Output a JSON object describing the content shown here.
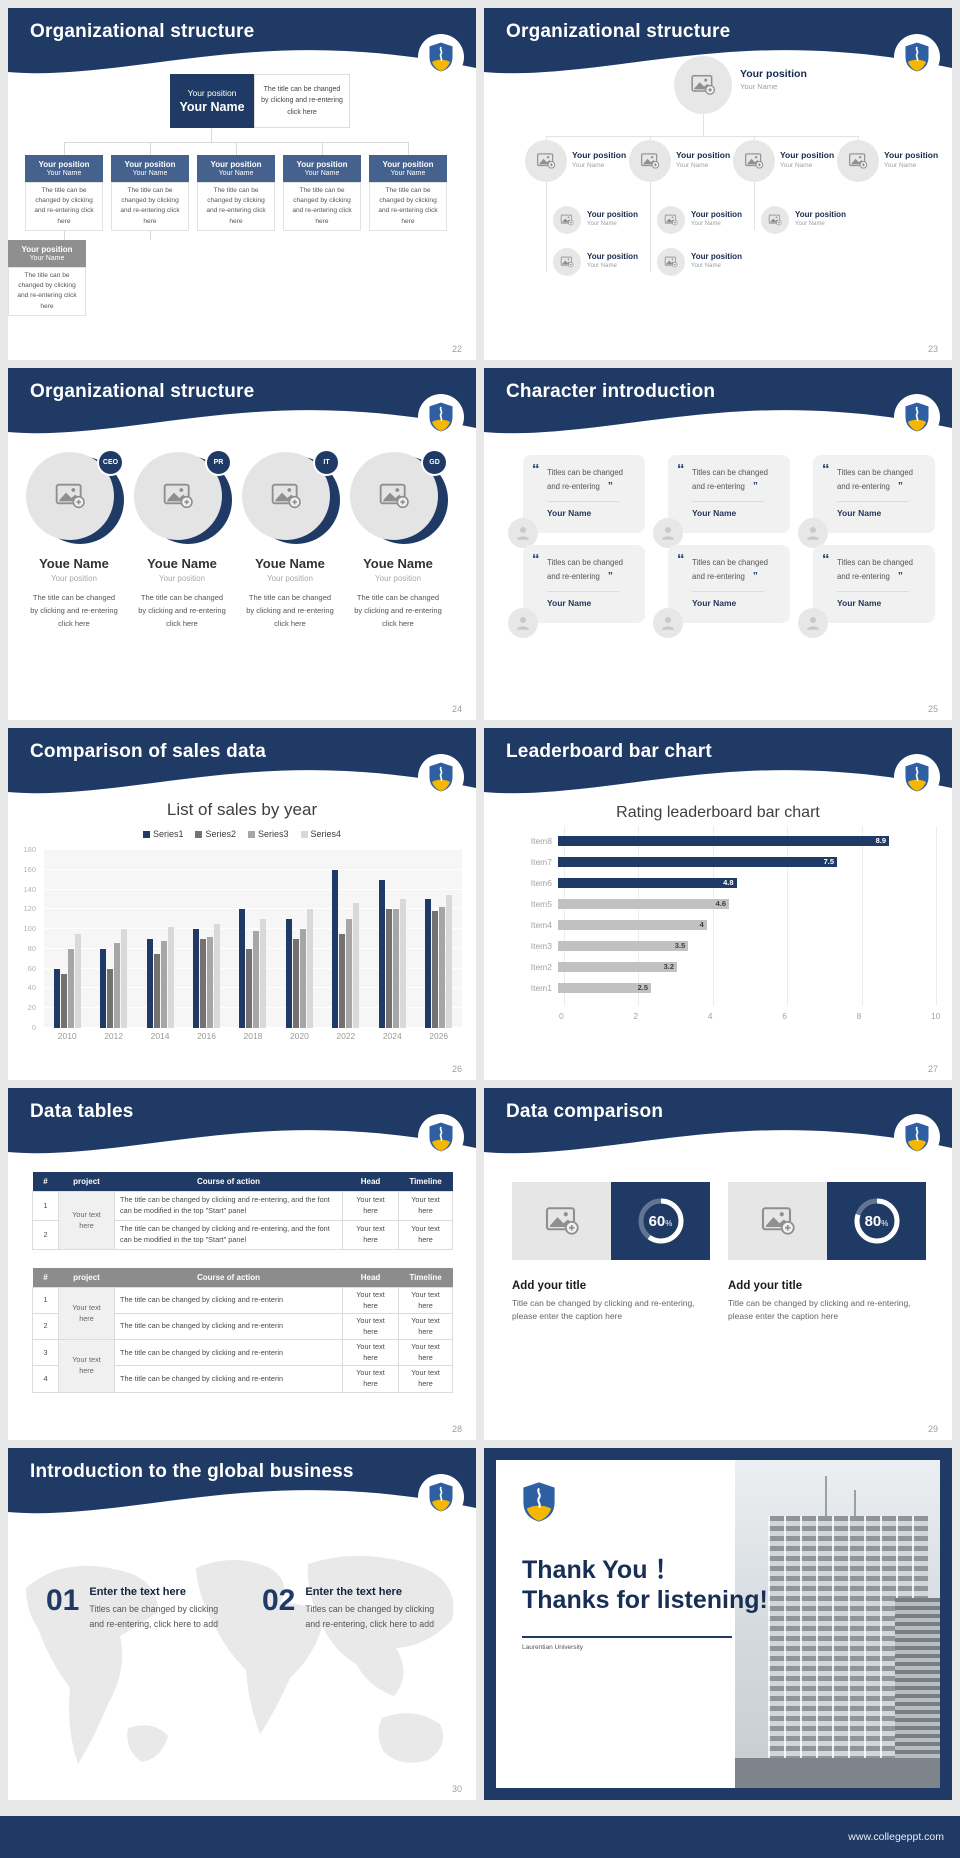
{
  "footer": {
    "url": "www.collegeppt.com"
  },
  "colors": {
    "navy": "#1f3a64",
    "slate_box": "#45618e",
    "gray_box": "#8f8f8f",
    "gold": "#f5b700",
    "shield_blue": "#2e5fa3",
    "leaderboard_gray": "#c1c1c1"
  },
  "slides": {
    "org_boxes": {
      "title": "Organizational structure",
      "page": "22",
      "root": {
        "position": "Your position",
        "name": "Your Name"
      },
      "root_note": "The title can be changed by clicking and re-entering click here",
      "caption": "The title can be changed by clicking and re-entering click here",
      "level2": [
        {
          "position": "Your position",
          "name": "Your Name"
        },
        {
          "position": "Your position",
          "name": "Your Name"
        },
        {
          "position": "Your position",
          "name": "Your Name"
        },
        {
          "position": "Your position",
          "name": "Your Name"
        },
        {
          "position": "Your position",
          "name": "Your Name"
        }
      ],
      "level3": [
        {
          "position": "Your position",
          "name": "Your Name"
        },
        {
          "position": "Your position",
          "name": "Your Name"
        }
      ]
    },
    "org_photos": {
      "title": "Organizational structure",
      "page": "23",
      "root": {
        "position": "Your position",
        "name": "Your Name"
      },
      "level2": [
        {
          "position": "Your position",
          "name": "Your Name"
        },
        {
          "position": "Your position",
          "name": "Your Name"
        },
        {
          "position": "Your position",
          "name": "Your Name"
        },
        {
          "position": "Your position",
          "name": "Your Name"
        }
      ],
      "level3": [
        {
          "position": "Your position",
          "name": "Your Name"
        },
        {
          "position": "Your position",
          "name": "Your Name"
        },
        {
          "position": "Your position",
          "name": "Your Name"
        }
      ],
      "level4": [
        {
          "position": "Your position",
          "name": "Your Name"
        },
        {
          "position": "Your position",
          "name": "Your Name"
        }
      ]
    },
    "org_roles": {
      "title": "Organizational structure",
      "page": "24",
      "members": [
        {
          "badge": "CEO",
          "name": "Youe Name",
          "position": "Your position",
          "caption": "The title can be changed by clicking and re-entering click here"
        },
        {
          "badge": "PR",
          "name": "Youe Name",
          "position": "Your position",
          "caption": "The title can be changed by clicking and re-entering click here"
        },
        {
          "badge": "IT",
          "name": "Youe Name",
          "position": "Your position",
          "caption": "The title can be changed by clicking and re-entering click here"
        },
        {
          "badge": "GD",
          "name": "Youe Name",
          "position": "Your position",
          "caption": "The title can be changed by clicking and re-entering click here"
        }
      ]
    },
    "characters": {
      "title": "Character introduction",
      "page": "25",
      "open_quote": "“",
      "close_quote": "”",
      "cards": [
        {
          "quote": "Titles can be changed and re-entering",
          "name": "Your Name"
        },
        {
          "quote": "Titles can be changed and re-entering",
          "name": "Your Name"
        },
        {
          "quote": "Titles can be changed and re-entering",
          "name": "Your Name"
        },
        {
          "quote": "Titles can be changed and re-entering",
          "name": "Your Name"
        },
        {
          "quote": "Titles can be changed and re-entering",
          "name": "Your Name"
        },
        {
          "quote": "Titles can be changed and re-entering",
          "name": "Your Name"
        }
      ]
    },
    "sales": {
      "title": "Comparison of sales data",
      "page": "26"
    },
    "leaderboard": {
      "title": "Leaderboard bar chart",
      "page": "27"
    },
    "tables": {
      "title": "Data tables",
      "page": "28",
      "headers": [
        "#",
        "project",
        "Course of action",
        "Head",
        "Timeline"
      ],
      "project_text": "Your text here",
      "cell_text": "Your text here",
      "t1_rows": [
        "1",
        "2"
      ],
      "t1_text": "The title can be changed by clicking and re-entering, and the font can be modified in the top \"Start\" panel",
      "t2_rows": [
        "1",
        "2",
        "3",
        "4"
      ],
      "t2_text": "The title can be changed by clicking and re-enterin"
    },
    "comparison": {
      "title": "Data comparison",
      "page": "29",
      "cards": [
        {
          "percent": 60,
          "percent_label": "60",
          "unit": "%",
          "heading": "Add your title",
          "caption": "Title can be changed by clicking and re-entering, please enter the caption here"
        },
        {
          "percent": 80,
          "percent_label": "80",
          "unit": "%",
          "heading": "Add your title",
          "caption": "Title can be changed by clicking and re-entering, please enter the caption here"
        }
      ]
    },
    "global": {
      "title": "Introduction to the global business",
      "page": "30",
      "items": [
        {
          "number": "01",
          "heading": "Enter the text here",
          "body": "Titles can be changed by clicking and re-entering, click here to add"
        },
        {
          "number": "02",
          "heading": "Enter the text here",
          "body": "Titles can be changed by clicking and re-entering, click here to add"
        }
      ]
    },
    "thanks": {
      "title_line1": "Thank You ！",
      "title_line2": "Thanks for listening!",
      "subtitle": "Laurentian University"
    }
  },
  "chart_data": [
    {
      "type": "bar",
      "title": "List of sales by year",
      "xlabel": "",
      "ylabel": "",
      "categories": [
        "2010",
        "2012",
        "2014",
        "2016",
        "2018",
        "2020",
        "2022",
        "2024",
        "2026"
      ],
      "series": [
        {
          "name": "Series1",
          "color": "#1f3a64",
          "values": [
            60,
            80,
            90,
            100,
            120,
            110,
            160,
            150,
            130
          ]
        },
        {
          "name": "Series2",
          "color": "#767171",
          "values": [
            55,
            60,
            75,
            90,
            80,
            90,
            95,
            120,
            118
          ]
        },
        {
          "name": "Series3",
          "color": "#a6a6a6",
          "values": [
            80,
            86,
            88,
            92,
            98,
            100,
            110,
            120,
            122
          ]
        },
        {
          "name": "Series4",
          "color": "#d9d9d9",
          "values": [
            95,
            100,
            102,
            105,
            110,
            120,
            126,
            130,
            135
          ]
        }
      ],
      "ylim": [
        0,
        180
      ],
      "yticks": [
        0,
        20,
        40,
        60,
        80,
        100,
        120,
        140,
        160,
        180
      ],
      "grid": true,
      "legend_position": "top"
    },
    {
      "type": "bar",
      "orientation": "horizontal",
      "title": "Rating leaderboard bar chart",
      "categories": [
        "Item8",
        "Item7",
        "Item6",
        "Item5",
        "Item4",
        "Item3",
        "Item2",
        "Item1"
      ],
      "values": [
        8.9,
        7.5,
        4.8,
        4.6,
        4,
        3.5,
        3.2,
        2.5
      ],
      "value_labels": [
        "8.9",
        "7.5",
        "4.8",
        "4.6",
        "4",
        "3.5",
        "3.2",
        "2.5"
      ],
      "bar_colors": [
        "#1f3a64",
        "#1f3a64",
        "#1f3a64",
        "#c1c1c1",
        "#c1c1c1",
        "#c1c1c1",
        "#c1c1c1",
        "#c1c1c1"
      ],
      "value_text_colors": [
        "#ffffff",
        "#ffffff",
        "#ffffff",
        "#3f3f3f",
        "#3f3f3f",
        "#3f3f3f",
        "#3f3f3f",
        "#3f3f3f"
      ],
      "xlim": [
        0,
        10
      ],
      "xticks": [
        0,
        2,
        4,
        6,
        8,
        10
      ],
      "grid": true
    }
  ]
}
